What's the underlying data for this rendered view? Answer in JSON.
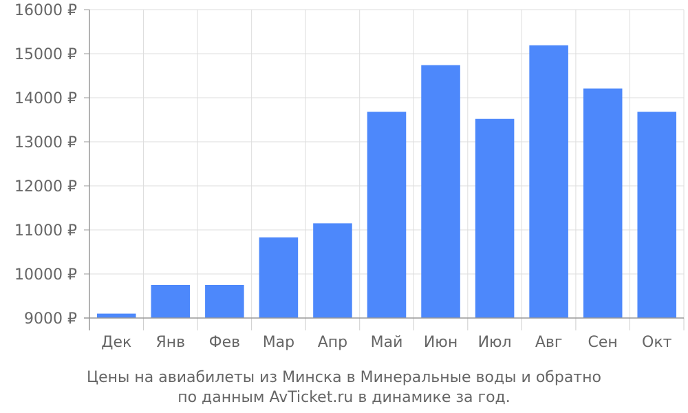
{
  "chart_data": {
    "type": "bar",
    "categories": [
      "Дек",
      "Янв",
      "Фев",
      "Мар",
      "Апр",
      "Май",
      "Июн",
      "Июл",
      "Авг",
      "Сен",
      "Окт"
    ],
    "values": [
      9100,
      9750,
      9750,
      10830,
      11150,
      13680,
      14740,
      13520,
      15190,
      14210,
      13680
    ],
    "ylim": [
      9000,
      16000
    ],
    "yticks": [
      9000,
      10000,
      11000,
      12000,
      13000,
      14000,
      15000,
      16000
    ],
    "currency_symbol": "₽",
    "grid": true,
    "bar_color": "#4d88fb",
    "caption_line1": "Цены на авиабилеты из Минска в Минеральные воды и обратно",
    "caption_line2": "по данным AvTicket.ru в динамике за год."
  }
}
